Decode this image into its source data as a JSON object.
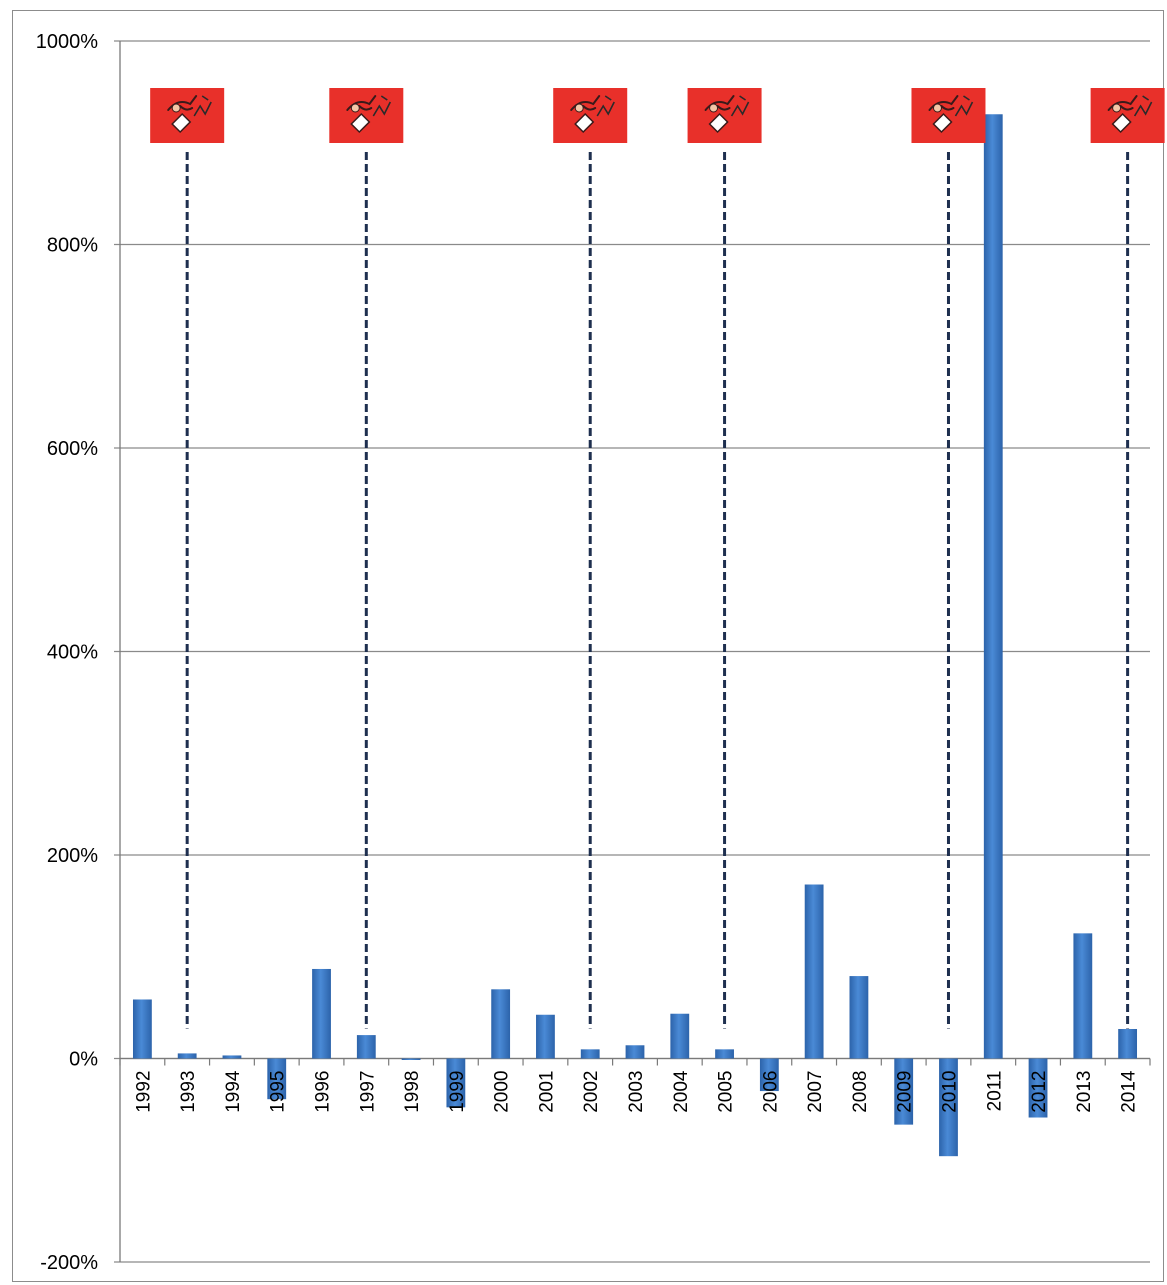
{
  "chart_data": {
    "type": "bar",
    "categories": [
      "1992",
      "1993",
      "1994",
      "1995",
      "1996",
      "1997",
      "1998",
      "1999",
      "2000",
      "2001",
      "2002",
      "2003",
      "2004",
      "2005",
      "2006",
      "2007",
      "2008",
      "2009",
      "2010",
      "2011",
      "2012",
      "2013",
      "2014"
    ],
    "values": [
      58,
      5,
      3,
      -40,
      88,
      23,
      -1,
      -48,
      68,
      43,
      9,
      13,
      44,
      9,
      -32,
      171,
      81,
      -65,
      -96,
      928,
      -58,
      123,
      29
    ],
    "ylim": [
      -200,
      1000
    ],
    "yticks": [
      -200,
      0,
      200,
      400,
      600,
      800,
      1000
    ],
    "ytick_labels": [
      "-200%",
      "0%",
      "200%",
      "400%",
      "600%",
      "800%",
      "1000%"
    ],
    "grid": true,
    "bar_color": "#3a78c4",
    "annotations": [
      {
        "category": "1993",
        "icon": "voting-hand-icon"
      },
      {
        "category": "1997",
        "icon": "voting-hand-icon"
      },
      {
        "category": "2002",
        "icon": "voting-hand-icon"
      },
      {
        "category": "2005",
        "icon": "voting-hand-icon"
      },
      {
        "category": "2010",
        "icon": "voting-hand-icon"
      },
      {
        "category": "2014",
        "icon": "voting-hand-icon"
      }
    ],
    "annotation_color": "#e8302a",
    "annotation_line_color": "#1e2f4f"
  }
}
